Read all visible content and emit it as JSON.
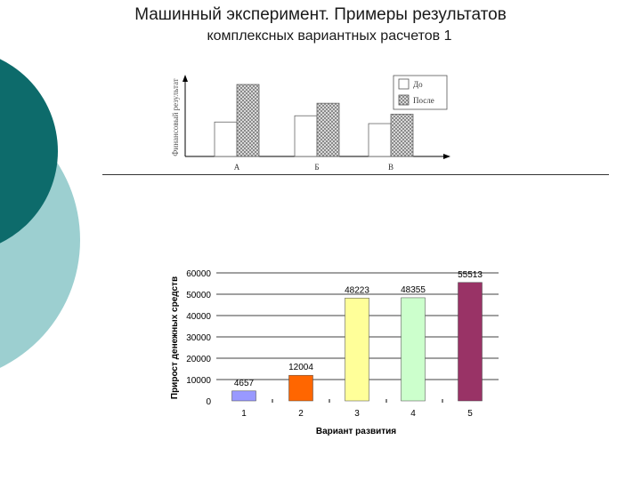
{
  "slide": {
    "title": "Машинный эксперимент. Примеры результатов",
    "subtitle": "комплексных вариантных расчетов 1",
    "colors": {
      "dark_teal": "#0d6b6b",
      "light_teal": "#9ccfd0"
    }
  },
  "chart_data": [
    {
      "type": "bar",
      "categories": [
        "А",
        "Б",
        "В"
      ],
      "series": [
        {
          "name": "До",
          "values": [
            0.44,
            0.52,
            0.42
          ],
          "color": "#ffffff"
        },
        {
          "name": "После",
          "values": [
            0.92,
            0.68,
            0.54
          ],
          "color": "#bdbdbd",
          "pattern": "checker"
        }
      ],
      "ylabel": "Финансовый результат",
      "xlabel": "",
      "ylim": [
        0,
        1
      ],
      "tick_labels_y": false,
      "legend": "top-right",
      "grid": false
    },
    {
      "type": "bar",
      "categories": [
        "1",
        "2",
        "3",
        "4",
        "5"
      ],
      "values": [
        4657,
        12004,
        48223,
        48355,
        55513
      ],
      "value_labels": [
        "4657",
        "12004",
        "48223",
        "48355",
        "55513"
      ],
      "colors": [
        "#9999ff",
        "#ff6600",
        "#ffff99",
        "#ccffcc",
        "#993366"
      ],
      "yticks": [
        "0",
        "10000",
        "20000",
        "30000",
        "40000",
        "50000",
        "60000"
      ],
      "ylim": [
        0,
        60000
      ],
      "xlabel": "Вариант развития",
      "ylabel": "Прирост денежных средств",
      "grid": true
    }
  ]
}
